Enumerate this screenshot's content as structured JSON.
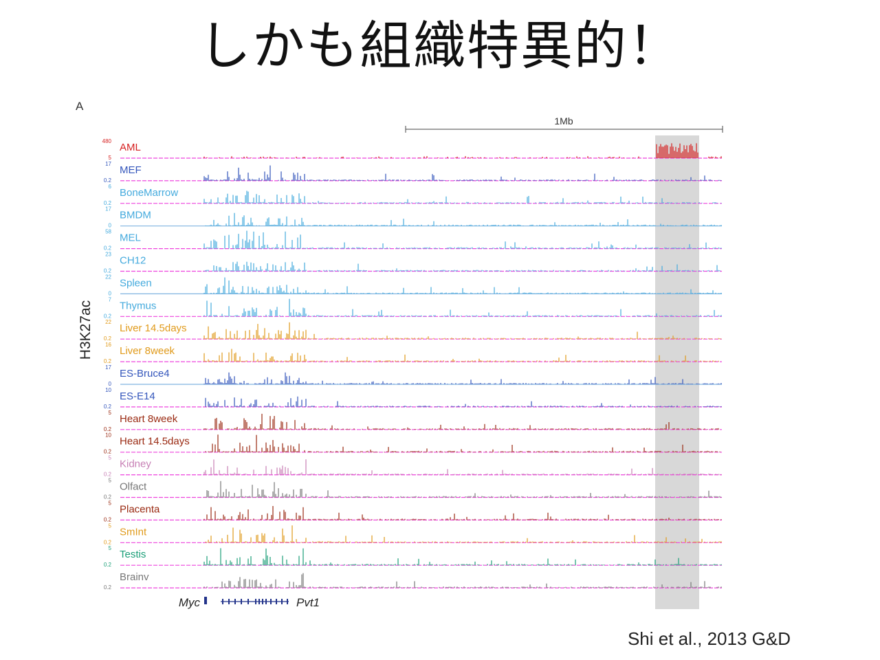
{
  "slide": {
    "title": "しかも組織特異的！",
    "panel_label": "A",
    "citation": "Shi et al., 2013 G&D"
  },
  "chart_data": {
    "type": "genome_browser_tracks",
    "ylabel": "H3K27ac",
    "scale_bar_label": "1Mb",
    "genes": [
      "Myc",
      "Pvt1"
    ],
    "highlight": "grey shaded region at right end of locus",
    "tracks": [
      {
        "name": "AML",
        "ymax": "480",
        "ymin": "5",
        "color": "#d62020"
      },
      {
        "name": "MEF",
        "ymax": "17",
        "ymin": "0.2",
        "color": "#3355bb"
      },
      {
        "name": "BoneMarrow",
        "ymax": "6",
        "ymin": "0.2",
        "color": "#44aadd"
      },
      {
        "name": "BMDM",
        "ymax": "17",
        "ymin": "0",
        "color": "#44aadd"
      },
      {
        "name": "MEL",
        "ymax": "58",
        "ymin": "0.2",
        "color": "#44aadd"
      },
      {
        "name": "CH12",
        "ymax": "23",
        "ymin": "0.2",
        "color": "#44aadd"
      },
      {
        "name": "Spleen",
        "ymax": "22",
        "ymin": "0",
        "color": "#44aadd"
      },
      {
        "name": "Thymus",
        "ymax": "7",
        "ymin": "0.2",
        "color": "#44aadd"
      },
      {
        "name": "Liver 14.5days",
        "ymax": "22",
        "ymin": "0.2",
        "color": "#e09a1a"
      },
      {
        "name": "Liver 8week",
        "ymax": "16",
        "ymin": "0.2",
        "color": "#e09a1a"
      },
      {
        "name": "ES-Bruce4",
        "ymax": "17",
        "ymin": "0",
        "color": "#3355bb"
      },
      {
        "name": "ES-E14",
        "ymax": "10",
        "ymin": "0.2",
        "color": "#3355bb"
      },
      {
        "name": "Heart 8week",
        "ymax": "5",
        "ymin": "0.2",
        "color": "#9a2a12"
      },
      {
        "name": "Heart 14.5days",
        "ymax": "10",
        "ymin": "0.2",
        "color": "#9a2a12"
      },
      {
        "name": "Kidney",
        "ymax": "5",
        "ymin": "0.2",
        "color": "#c77fb5"
      },
      {
        "name": "Olfact",
        "ymax": "5",
        "ymin": "0.2",
        "color": "#777777"
      },
      {
        "name": "Placenta",
        "ymax": "5",
        "ymin": "0.2",
        "color": "#9a2a12"
      },
      {
        "name": "SmInt",
        "ymax": "5",
        "ymin": "0.2",
        "color": "#e09a1a"
      },
      {
        "name": "Testis",
        "ymax": "5",
        "ymin": "0.2",
        "color": "#1a9e77"
      },
      {
        "name": "Brainv",
        "ymax": "",
        "ymin": "0.2",
        "color": "#777777"
      }
    ]
  }
}
